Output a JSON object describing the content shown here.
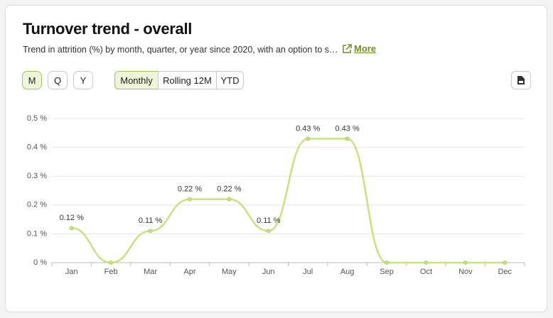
{
  "header": {
    "title": "Turnover trend - overall",
    "subtitle": "Trend in attrition (%) by month, quarter, or year since 2020, with an option to s…",
    "link": "More"
  },
  "controls": {
    "period": [
      "M",
      "Q",
      "Y"
    ],
    "mode": [
      "Monthly",
      "Rolling 12M",
      "YTD"
    ]
  },
  "chart_data": {
    "type": "line",
    "categories": [
      "Jan",
      "Feb",
      "Mar",
      "Apr",
      "May",
      "Jun",
      "Jul",
      "Aug",
      "Sep",
      "Oct",
      "Nov",
      "Dec"
    ],
    "values": [
      0.12,
      0,
      0.11,
      0.22,
      0.22,
      0.11,
      0.43,
      0.43,
      0,
      0,
      0,
      0
    ],
    "value_labels": [
      "0.12 %",
      null,
      "0.11 %",
      "0.22 %",
      "0.22 %",
      "0.11 %",
      "0.43 %",
      "0.43 %",
      null,
      null,
      null,
      null
    ],
    "color": "#c8e27c",
    "ylim": [
      0,
      0.5
    ],
    "yticks": [
      {
        "value": 0,
        "label": "0 %"
      },
      {
        "value": 0.1,
        "label": "0.1 %"
      },
      {
        "value": 0.2,
        "label": "0.2 %"
      },
      {
        "value": 0.3,
        "label": "0.3 %"
      },
      {
        "value": 0.4,
        "label": "0.4 %"
      },
      {
        "value": 0.5,
        "label": "0.5 %"
      }
    ],
    "grid": true
  }
}
